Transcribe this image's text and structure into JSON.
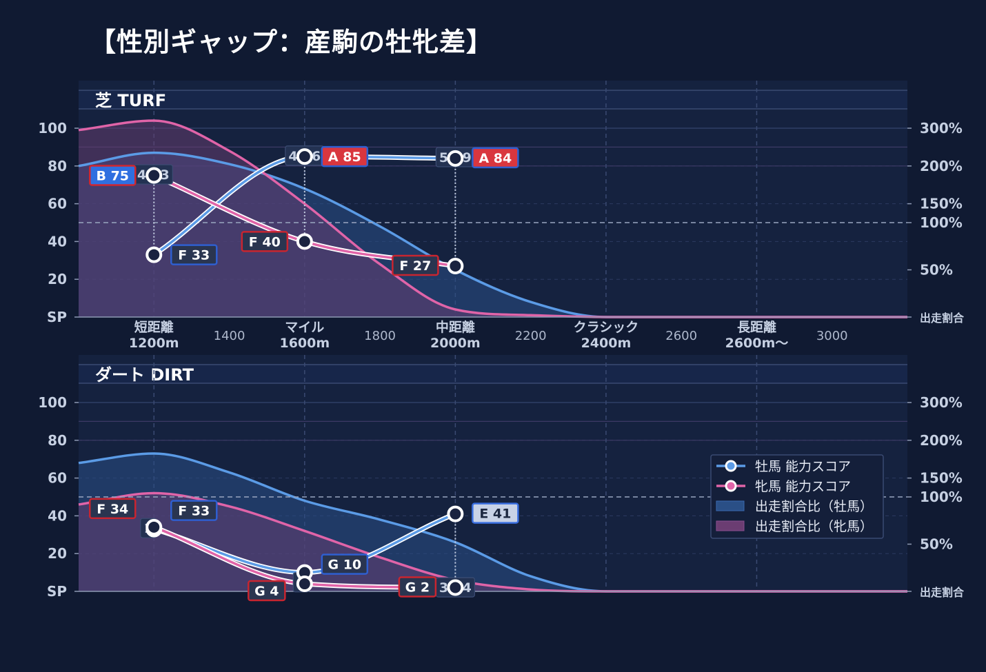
{
  "title": "【性別ギャップ：産駒の牡牝差】",
  "colors": {
    "background": "#101a32",
    "plot_bg": "#15223f",
    "male": "#5b9be6",
    "female": "#e064a8",
    "male_fill": "#2a4f86",
    "female_fill": "#6b3d72",
    "badge_border": "#c9252f"
  },
  "chart_data": [
    {
      "type": "line",
      "panel_title": "芝 TURF",
      "x_categories": [
        {
          "x": 1200,
          "label": "短距離",
          "sub": "1200m"
        },
        {
          "x": 1400,
          "label": "1400"
        },
        {
          "x": 1600,
          "label": "マイル",
          "sub": "1600m"
        },
        {
          "x": 1800,
          "label": "1800"
        },
        {
          "x": 2000,
          "label": "中距離",
          "sub": "2000m"
        },
        {
          "x": 2200,
          "label": "2200"
        },
        {
          "x": 2400,
          "label": "クラシック",
          "sub": "2400m"
        },
        {
          "x": 2600,
          "label": "2600"
        },
        {
          "x": 2800,
          "label": "長距離",
          "sub": "2600m〜"
        },
        {
          "x": 3000,
          "label": "3000"
        }
      ],
      "y_left_ticks": [
        "SP",
        "20",
        "40",
        "60",
        "80",
        "100"
      ],
      "y_left_range": [
        0,
        100
      ],
      "y_right_ticks": [
        "出走割合",
        "50%",
        "100%",
        "150%",
        "200%",
        "300%"
      ],
      "series": [
        {
          "name": "牡馬 能力スコア",
          "x": [
            1200,
            1600,
            2000
          ],
          "values": [
            33,
            85,
            84
          ],
          "grades": [
            "F 33",
            "A 85",
            "A 84"
          ]
        },
        {
          "name": "牝馬 能力スコア",
          "x": [
            1200,
            1600,
            2000
          ],
          "values": [
            75,
            40,
            27
          ],
          "grades": [
            "B 75",
            "F 40",
            "F 27"
          ]
        }
      ],
      "gap_labels": [
        {
          "x": 1200,
          "value": "42.3"
        },
        {
          "x": 1600,
          "value": "45.6"
        },
        {
          "x": 2000,
          "value": "56.9"
        }
      ],
      "ratio_series": [
        {
          "name": "出走割合比（牡馬）",
          "x": [
            1000,
            1200,
            1400,
            1600,
            1800,
            2000,
            2200,
            2400,
            3200
          ],
          "values": [
            80,
            87,
            81,
            68,
            48,
            25,
            8,
            0,
            0
          ]
        },
        {
          "name": "出走割合比（牝馬）",
          "x": [
            1000,
            1200,
            1400,
            1600,
            1800,
            2000,
            2200,
            2400,
            3200
          ],
          "values": [
            99,
            104,
            88,
            60,
            28,
            4,
            1,
            0,
            0
          ]
        }
      ]
    },
    {
      "type": "line",
      "panel_title": "ダート DIRT",
      "y_left_ticks": [
        "SP",
        "20",
        "40",
        "60",
        "80",
        "100"
      ],
      "y_left_range": [
        0,
        100
      ],
      "y_right_ticks": [
        "出走割合",
        "50%",
        "100%",
        "150%",
        "200%",
        "300%"
      ],
      "series": [
        {
          "name": "牡馬 能力スコア",
          "x": [
            1200,
            1600,
            2000
          ],
          "values": [
            33,
            10,
            41
          ],
          "grades": [
            "F 33",
            "G 10",
            "E 41"
          ]
        },
        {
          "name": "牝馬 能力スコア",
          "x": [
            1200,
            1600,
            2000
          ],
          "values": [
            34,
            4,
            2
          ],
          "grades": [
            "F 34",
            "G 4",
            "G 2"
          ]
        }
      ],
      "gap_labels": [
        {
          "x": 1200,
          "value": "1"
        },
        {
          "x": 1600,
          "value": "6"
        },
        {
          "x": 2000,
          "value": "39.4"
        }
      ],
      "ratio_series": [
        {
          "name": "出走割合比（牡馬）",
          "x": [
            1000,
            1200,
            1400,
            1600,
            1800,
            2000,
            2200,
            2400,
            3200
          ],
          "values": [
            68,
            73,
            63,
            48,
            38,
            26,
            8,
            0,
            0
          ]
        },
        {
          "name": "出走割合比（牝馬）",
          "x": [
            1000,
            1200,
            1400,
            1600,
            1800,
            2000,
            2200,
            2400,
            3200
          ],
          "values": [
            46,
            52,
            45,
            32,
            18,
            6,
            1,
            0,
            0
          ]
        }
      ]
    }
  ],
  "legend": {
    "placement": "right-middle",
    "items": [
      {
        "label": "牡馬 能力スコア",
        "kind": "line",
        "color": "#5b9be6"
      },
      {
        "label": "牝馬 能力スコア",
        "kind": "line",
        "color": "#e064a8"
      },
      {
        "label": "出走割合比（牡馬）",
        "kind": "patch",
        "color": "#2a4f86"
      },
      {
        "label": "出走割合比（牝馬）",
        "kind": "patch",
        "color": "#6b3d72"
      }
    ]
  }
}
